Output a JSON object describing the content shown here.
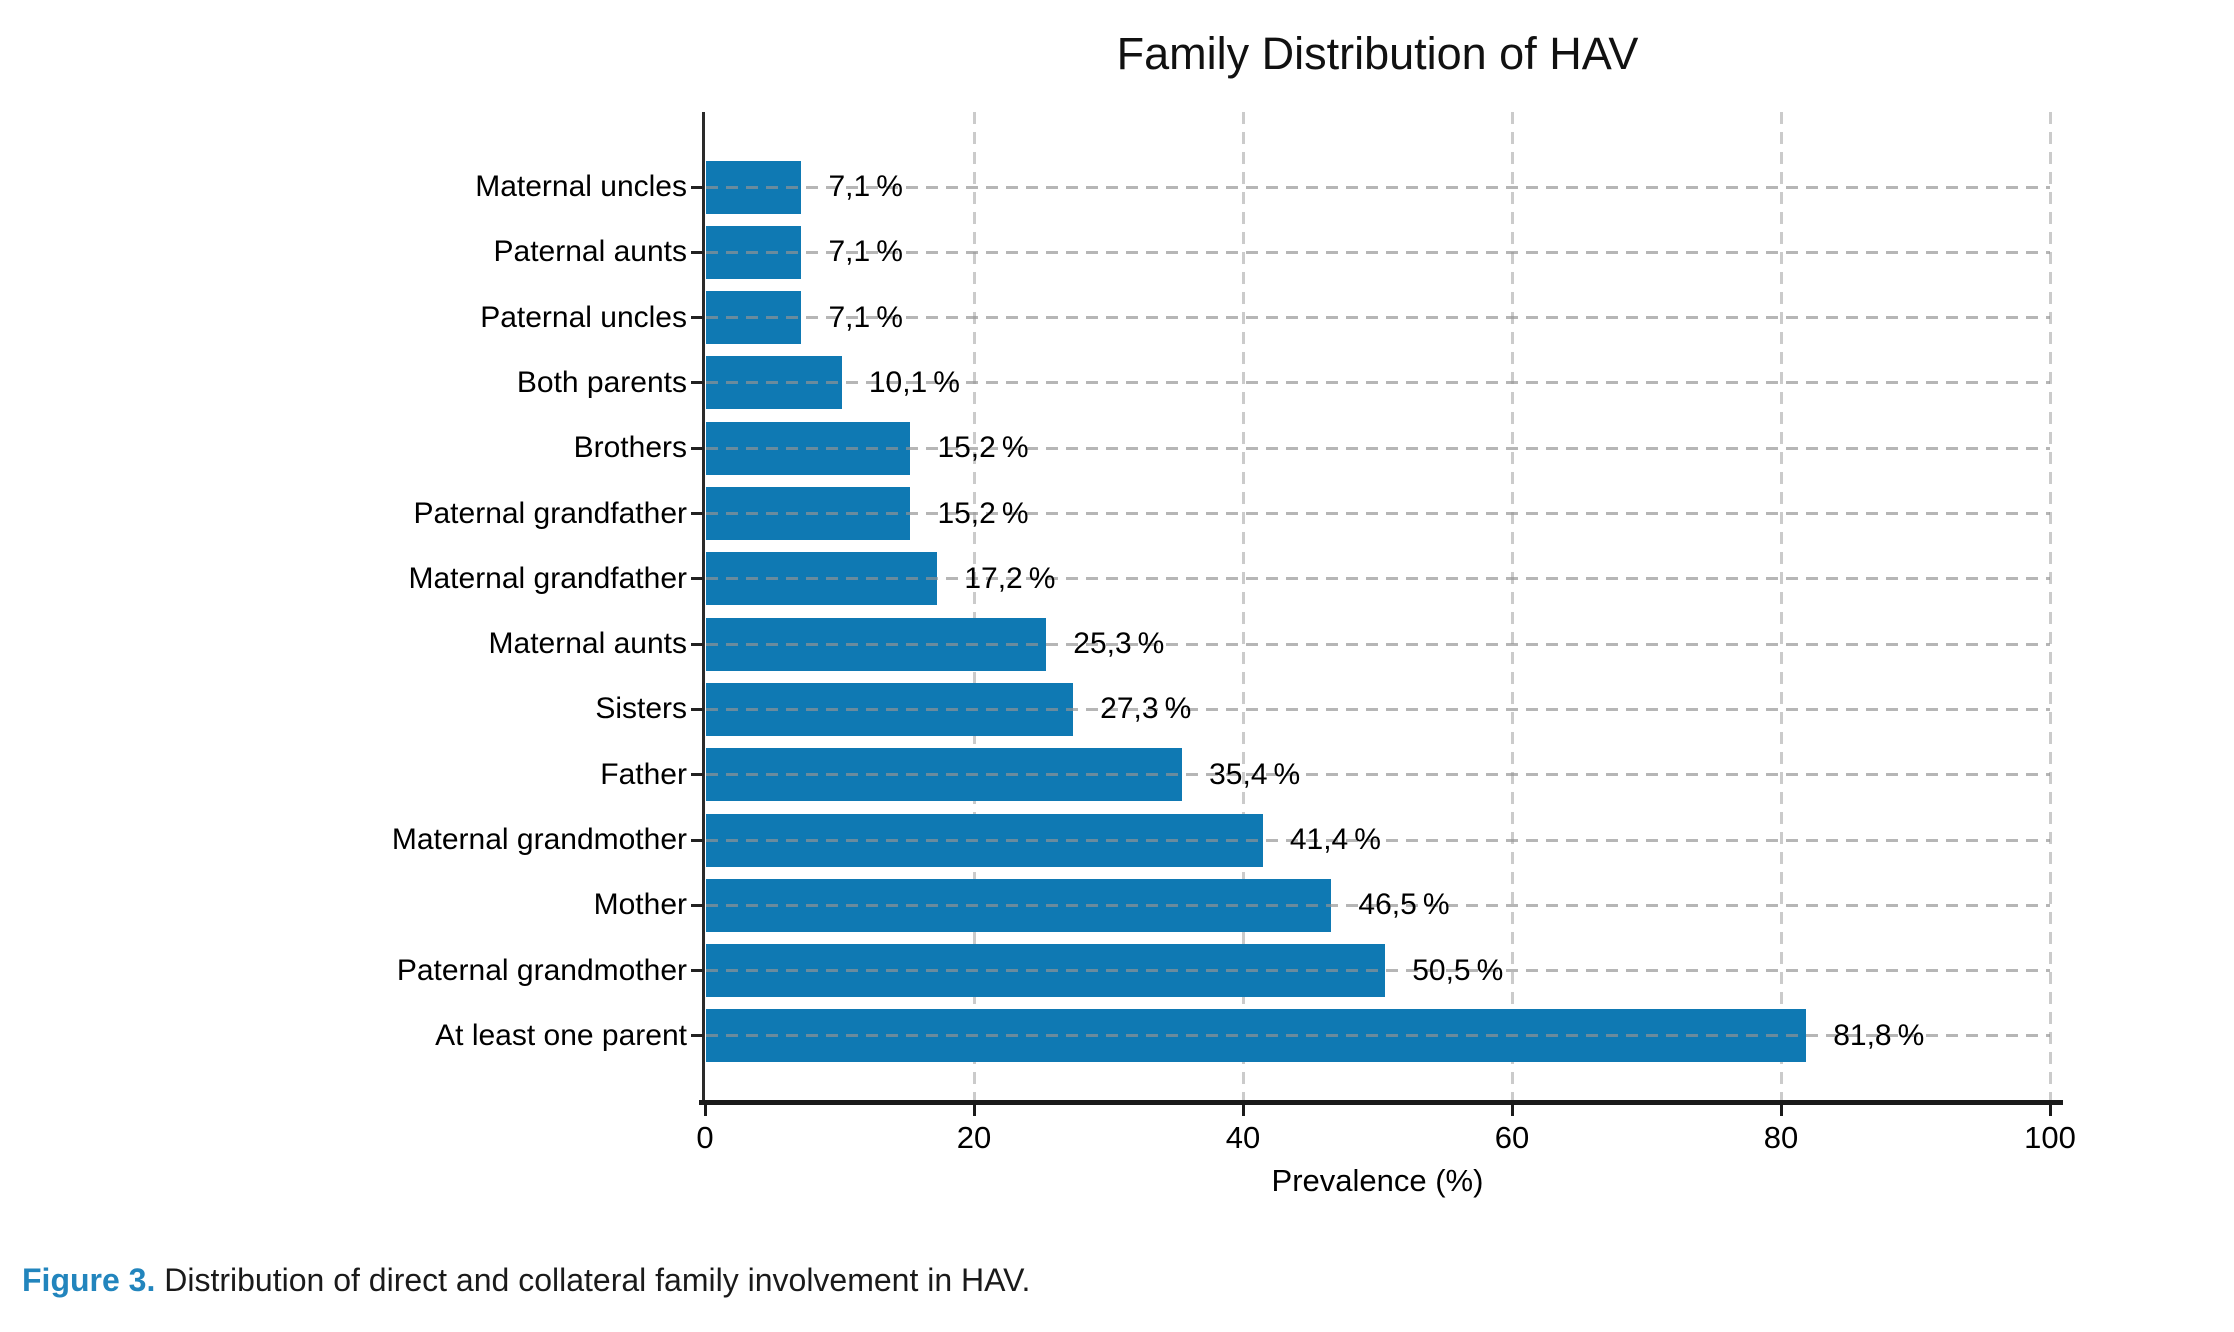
{
  "title": "Family Distribution of HAV",
  "caption": {
    "prefix": "Figure 3.",
    "text": " Distribution of direct and collateral family involvement in HAV."
  },
  "colors": {
    "bar": "#0f79b3",
    "caption_accent": "#2285bd",
    "grid": "#cbcbcb",
    "spine": "#1a1a1a",
    "text": "#000000"
  },
  "chart_data": {
    "type": "bar",
    "orientation": "horizontal",
    "title": "Family Distribution of HAV",
    "xlabel": "Prevalence (%)",
    "ylabel": "",
    "xlim": [
      0,
      100
    ],
    "xticks": [
      0,
      20,
      40,
      60,
      80,
      100
    ],
    "grid": true,
    "categories": [
      "Maternal uncles",
      "Paternal aunts",
      "Paternal uncles",
      "Both parents",
      "Brothers",
      "Paternal grandfather",
      "Maternal grandfather",
      "Maternal aunts",
      "Sisters",
      "Father",
      "Maternal grandmother",
      "Mother",
      "Paternal grandmother",
      "At least one parent"
    ],
    "values": [
      7.1,
      7.1,
      7.1,
      10.1,
      15.2,
      15.2,
      17.2,
      25.3,
      27.3,
      35.4,
      41.4,
      46.5,
      50.5,
      81.8
    ],
    "value_labels": [
      "7,1 %",
      "7,1 %",
      "7,1 %",
      "10,1 %",
      "15,2 %",
      "15,2 %",
      "17,2 %",
      "25,3 %",
      "27,3 %",
      "35,4 %",
      "41,4 %",
      "46,5 %",
      "50,5 %",
      "81,8 %"
    ],
    "bar_color": "#0f79b3"
  }
}
